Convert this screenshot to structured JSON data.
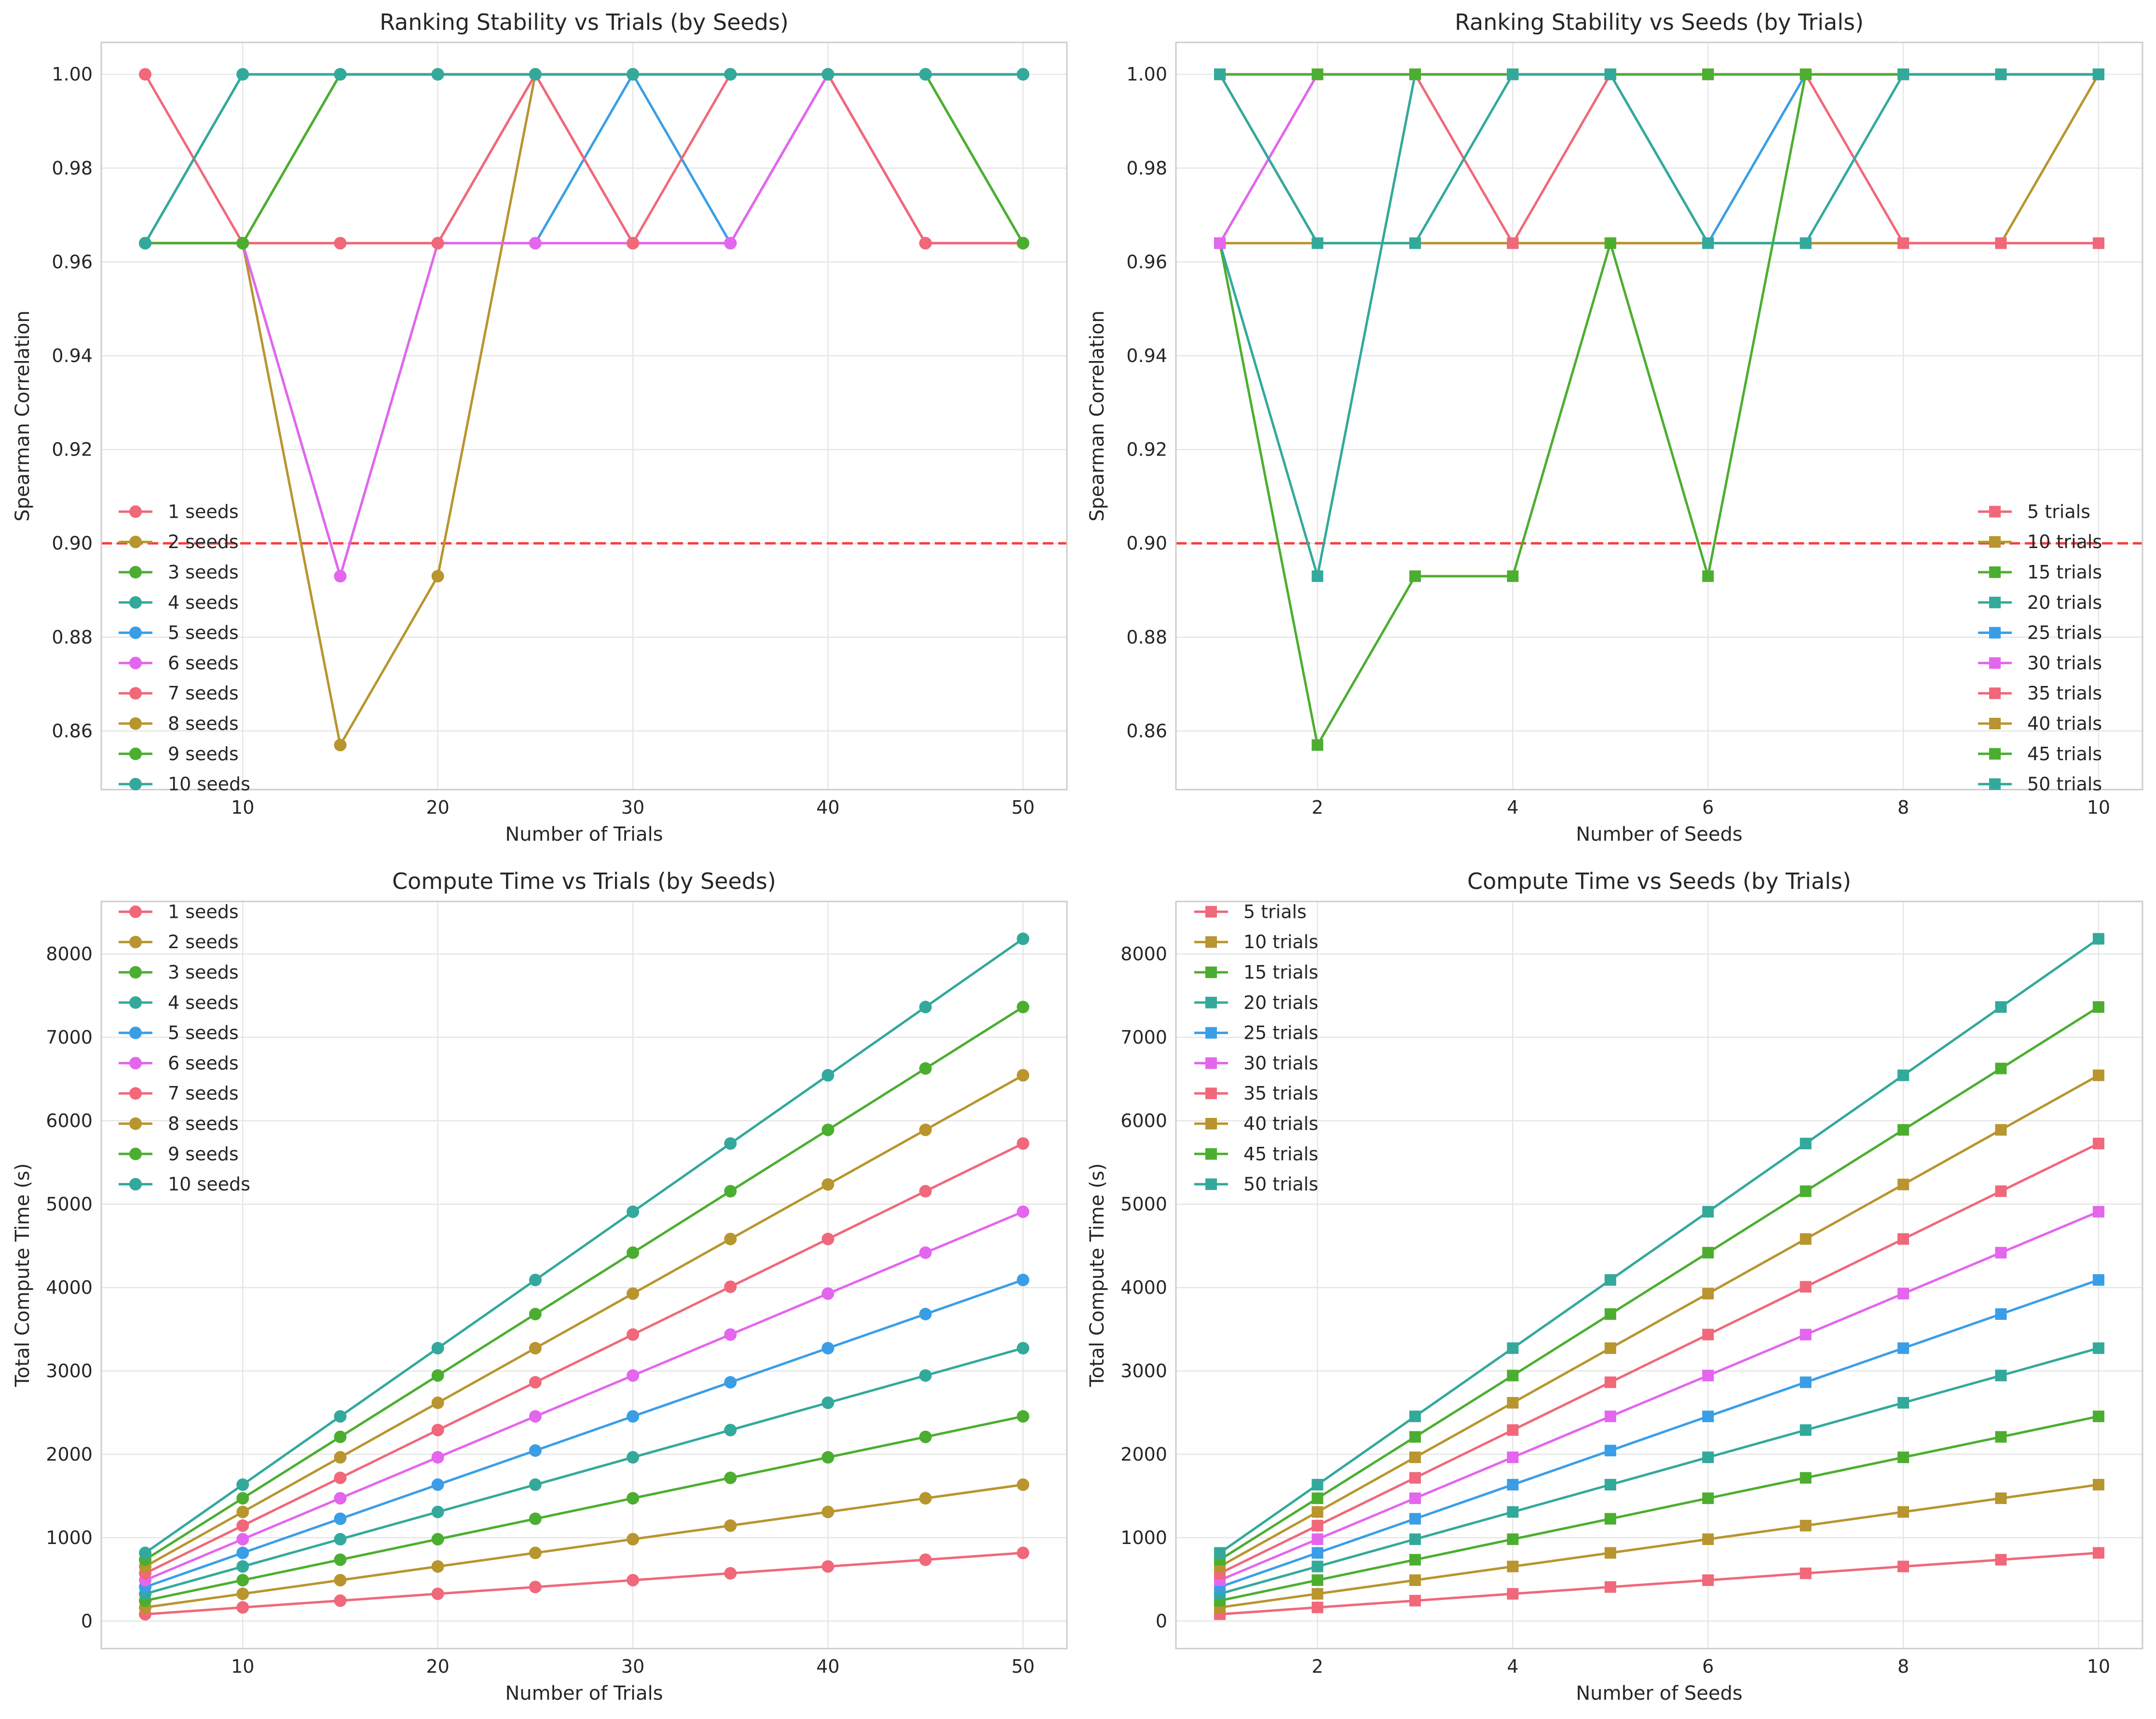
{
  "chart_data": [
    {
      "type": "line",
      "title": "Ranking Stability vs Trials (by Seeds)",
      "xlabel": "Number of Trials",
      "ylabel": "Spearman Correlation",
      "xlim": [
        2.75,
        52.25
      ],
      "ylim": [
        0.8475,
        1.0068
      ],
      "xticks": [
        10,
        20,
        30,
        40,
        50
      ],
      "yticks": [
        0.86,
        0.88,
        0.9,
        0.92,
        0.94,
        0.96,
        0.98,
        1.0
      ],
      "grid": true,
      "legend_position": "lower-left",
      "marker": "circle",
      "reference_line": {
        "y": 0.9,
        "color": "#ff0000",
        "style": "dashed"
      },
      "x": [
        5,
        10,
        15,
        20,
        25,
        30,
        35,
        40,
        45,
        50
      ],
      "series": [
        {
          "name": "1 seeds",
          "color": "#f0687a",
          "values": [
            1.0,
            0.964,
            0.964,
            0.964,
            1.0,
            0.964,
            0.964,
            1.0,
            0.964,
            0.964
          ]
        },
        {
          "name": "2 seeds",
          "color": "#b8952f",
          "values": [
            0.964,
            0.964,
            0.857,
            0.893,
            1.0,
            1.0,
            1.0,
            1.0,
            1.0,
            1.0
          ]
        },
        {
          "name": "3 seeds",
          "color": "#4cae30",
          "values": [
            0.964,
            0.964,
            1.0,
            1.0,
            1.0,
            1.0,
            1.0,
            1.0,
            1.0,
            0.964
          ]
        },
        {
          "name": "4 seeds",
          "color": "#33a99b",
          "values": [
            0.964,
            1.0,
            1.0,
            1.0,
            1.0,
            1.0,
            1.0,
            1.0,
            1.0,
            1.0
          ]
        },
        {
          "name": "5 seeds",
          "color": "#3a9ee6",
          "values": [
            0.964,
            0.964,
            0.893,
            0.964,
            0.964,
            1.0,
            0.964,
            1.0,
            1.0,
            1.0
          ]
        },
        {
          "name": "6 seeds",
          "color": "#e465ee",
          "values": [
            0.964,
            0.964,
            0.893,
            0.964,
            0.964,
            0.964,
            0.964,
            1.0,
            0.964,
            0.964
          ]
        },
        {
          "name": "7 seeds",
          "color": "#f0687a",
          "values": [
            0.964,
            0.964,
            0.964,
            0.964,
            1.0,
            0.964,
            1.0,
            1.0,
            0.964,
            0.964
          ]
        },
        {
          "name": "8 seeds",
          "color": "#b8952f",
          "values": [
            0.964,
            0.964,
            1.0,
            1.0,
            1.0,
            1.0,
            1.0,
            1.0,
            1.0,
            1.0
          ]
        },
        {
          "name": "9 seeds",
          "color": "#4cae30",
          "values": [
            0.964,
            0.964,
            1.0,
            1.0,
            1.0,
            1.0,
            1.0,
            1.0,
            1.0,
            0.964
          ]
        },
        {
          "name": "10 seeds",
          "color": "#33a99b",
          "values": [
            0.964,
            1.0,
            1.0,
            1.0,
            1.0,
            1.0,
            1.0,
            1.0,
            1.0,
            1.0
          ]
        }
      ]
    },
    {
      "type": "line",
      "title": "Ranking Stability vs Seeds (by Trials)",
      "xlabel": "Number of Seeds",
      "ylabel": "Spearman Correlation",
      "xlim": [
        0.55,
        10.45
      ],
      "ylim": [
        0.8475,
        1.0068
      ],
      "xticks": [
        2,
        4,
        6,
        8,
        10
      ],
      "yticks": [
        0.86,
        0.88,
        0.9,
        0.92,
        0.94,
        0.96,
        0.98,
        1.0
      ],
      "grid": true,
      "legend_position": "lower-right",
      "marker": "square",
      "reference_line": {
        "y": 0.9,
        "color": "#ff0000",
        "style": "dashed"
      },
      "x": [
        1,
        2,
        3,
        4,
        5,
        6,
        7,
        8,
        9,
        10
      ],
      "series": [
        {
          "name": "5 trials",
          "color": "#f0687a",
          "values": [
            1.0,
            0.964,
            0.964,
            0.964,
            0.964,
            0.964,
            0.964,
            0.964,
            0.964,
            0.964
          ]
        },
        {
          "name": "10 trials",
          "color": "#b8952f",
          "values": [
            0.964,
            0.964,
            0.964,
            0.964,
            0.964,
            0.964,
            0.964,
            0.964,
            0.964,
            1.0
          ]
        },
        {
          "name": "15 trials",
          "color": "#4cae30",
          "values": [
            0.964,
            0.857,
            0.893,
            0.893,
            0.964,
            0.893,
            1.0,
            1.0,
            1.0,
            1.0
          ]
        },
        {
          "name": "20 trials",
          "color": "#33a99b",
          "values": [
            0.964,
            0.893,
            1.0,
            1.0,
            1.0,
            1.0,
            1.0,
            1.0,
            1.0,
            1.0
          ]
        },
        {
          "name": "25 trials",
          "color": "#3a9ee6",
          "values": [
            0.964,
            1.0,
            1.0,
            1.0,
            1.0,
            0.964,
            1.0,
            1.0,
            1.0,
            1.0
          ]
        },
        {
          "name": "30 trials",
          "color": "#e465ee",
          "values": [
            0.964,
            1.0,
            1.0,
            1.0,
            1.0,
            1.0,
            1.0,
            1.0,
            1.0,
            1.0
          ]
        },
        {
          "name": "35 trials",
          "color": "#f0687a",
          "values": [
            1.0,
            1.0,
            1.0,
            0.964,
            1.0,
            1.0,
            1.0,
            0.964,
            0.964,
            0.964
          ]
        },
        {
          "name": "40 trials",
          "color": "#b8952f",
          "values": [
            1.0,
            1.0,
            1.0,
            1.0,
            1.0,
            1.0,
            1.0,
            1.0,
            1.0,
            1.0
          ]
        },
        {
          "name": "45 trials",
          "color": "#4cae30",
          "values": [
            1.0,
            1.0,
            1.0,
            1.0,
            1.0,
            1.0,
            1.0,
            1.0,
            1.0,
            1.0
          ]
        },
        {
          "name": "50 trials",
          "color": "#33a99b",
          "values": [
            1.0,
            0.964,
            0.964,
            1.0,
            1.0,
            0.964,
            0.964,
            1.0,
            1.0,
            1.0
          ]
        }
      ]
    },
    {
      "type": "line",
      "title": "Compute Time vs Trials (by Seeds)",
      "xlabel": "Number of Trials",
      "ylabel": "Total Compute Time (s)",
      "xlim": [
        2.75,
        52.25
      ],
      "ylim": [
        -330,
        8630
      ],
      "xticks": [
        10,
        20,
        30,
        40,
        50
      ],
      "yticks": [
        0,
        1000,
        2000,
        3000,
        4000,
        5000,
        6000,
        7000,
        8000
      ],
      "grid": true,
      "legend_position": "top-left",
      "marker": "circle",
      "x": [
        5,
        10,
        15,
        20,
        25,
        30,
        35,
        40,
        45,
        50
      ],
      "series": [
        {
          "name": "1 seeds",
          "color": "#f0687a",
          "values": [
            82,
            164,
            245,
            327,
            409,
            491,
            573,
            655,
            736,
            818
          ]
        },
        {
          "name": "2 seeds",
          "color": "#b8952f",
          "values": [
            164,
            327,
            491,
            655,
            818,
            982,
            1145,
            1309,
            1473,
            1636
          ]
        },
        {
          "name": "3 seeds",
          "color": "#4cae30",
          "values": [
            245,
            491,
            736,
            982,
            1227,
            1473,
            1718,
            1964,
            2209,
            2455
          ]
        },
        {
          "name": "4 seeds",
          "color": "#33a99b",
          "values": [
            327,
            655,
            982,
            1309,
            1636,
            1964,
            2291,
            2618,
            2945,
            3273
          ]
        },
        {
          "name": "5 seeds",
          "color": "#3a9ee6",
          "values": [
            409,
            818,
            1227,
            1636,
            2045,
            2455,
            2864,
            3273,
            3682,
            4091
          ]
        },
        {
          "name": "6 seeds",
          "color": "#e465ee",
          "values": [
            491,
            982,
            1473,
            1964,
            2455,
            2945,
            3436,
            3927,
            4418,
            4909
          ]
        },
        {
          "name": "7 seeds",
          "color": "#f0687a",
          "values": [
            573,
            1145,
            1718,
            2291,
            2864,
            3436,
            4009,
            4582,
            5155,
            5727
          ]
        },
        {
          "name": "8 seeds",
          "color": "#b8952f",
          "values": [
            655,
            1309,
            1964,
            2618,
            3273,
            3927,
            4582,
            5236,
            5891,
            6545
          ]
        },
        {
          "name": "9 seeds",
          "color": "#4cae30",
          "values": [
            736,
            1473,
            2209,
            2945,
            3682,
            4418,
            5155,
            5891,
            6627,
            7364
          ]
        },
        {
          "name": "10 seeds",
          "color": "#33a99b",
          "values": [
            818,
            1636,
            2455,
            3273,
            4091,
            4909,
            5727,
            6545,
            7364,
            8182
          ]
        }
      ]
    },
    {
      "type": "line",
      "title": "Compute Time vs Seeds (by Trials)",
      "xlabel": "Number of Seeds",
      "ylabel": "Total Compute Time (s)",
      "xlim": [
        0.55,
        10.45
      ],
      "ylim": [
        -330,
        8630
      ],
      "xticks": [
        2,
        4,
        6,
        8,
        10
      ],
      "yticks": [
        0,
        1000,
        2000,
        3000,
        4000,
        5000,
        6000,
        7000,
        8000
      ],
      "grid": true,
      "legend_position": "top-left",
      "marker": "square",
      "x": [
        1,
        2,
        3,
        4,
        5,
        6,
        7,
        8,
        9,
        10
      ],
      "series": [
        {
          "name": "5 trials",
          "color": "#f0687a",
          "values": [
            82,
            164,
            245,
            327,
            409,
            491,
            573,
            655,
            736,
            818
          ]
        },
        {
          "name": "10 trials",
          "color": "#b8952f",
          "values": [
            164,
            327,
            491,
            655,
            818,
            982,
            1145,
            1309,
            1473,
            1636
          ]
        },
        {
          "name": "15 trials",
          "color": "#4cae30",
          "values": [
            245,
            491,
            736,
            982,
            1227,
            1473,
            1718,
            1964,
            2209,
            2455
          ]
        },
        {
          "name": "20 trials",
          "color": "#33a99b",
          "values": [
            327,
            655,
            982,
            1309,
            1636,
            1964,
            2291,
            2618,
            2945,
            3273
          ]
        },
        {
          "name": "25 trials",
          "color": "#3a9ee6",
          "values": [
            409,
            818,
            1227,
            1636,
            2045,
            2455,
            2864,
            3273,
            3682,
            4091
          ]
        },
        {
          "name": "30 trials",
          "color": "#e465ee",
          "values": [
            491,
            982,
            1473,
            1964,
            2455,
            2945,
            3436,
            3927,
            4418,
            4909
          ]
        },
        {
          "name": "35 trials",
          "color": "#f0687a",
          "values": [
            573,
            1145,
            1718,
            2291,
            2864,
            3436,
            4009,
            4582,
            5155,
            5727
          ]
        },
        {
          "name": "40 trials",
          "color": "#b8952f",
          "values": [
            655,
            1309,
            1964,
            2618,
            3273,
            3927,
            4582,
            5236,
            5891,
            6545
          ]
        },
        {
          "name": "45 trials",
          "color": "#4cae30",
          "values": [
            736,
            1473,
            2209,
            2945,
            3682,
            4418,
            5155,
            5891,
            6627,
            7364
          ]
        },
        {
          "name": "50 trials",
          "color": "#33a99b",
          "values": [
            818,
            1636,
            2455,
            3273,
            4091,
            4909,
            5727,
            6545,
            7364,
            8182
          ]
        }
      ]
    }
  ]
}
